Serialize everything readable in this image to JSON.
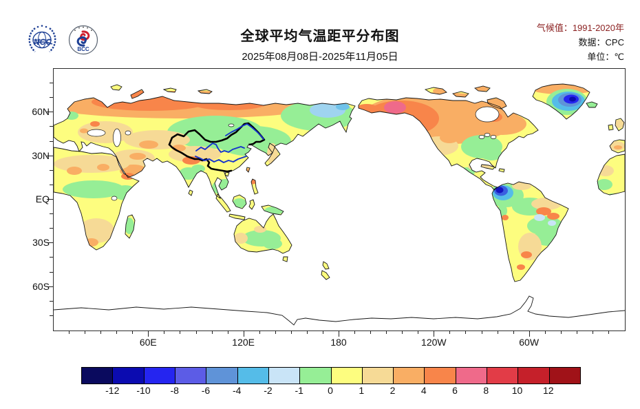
{
  "header": {
    "title": "全球平均气温距平分布图",
    "subtitle": "2025年08月08日-2025年11月05日",
    "info": [
      {
        "text": "气候值：1991-2020年"
      },
      {
        "text": "数据：CPC"
      },
      {
        "text": "单位：℃"
      }
    ],
    "logos": {
      "ncc_label": "NCC",
      "bcc_label": "BCC"
    }
  },
  "colors": {
    "climate_line": "#8a1f1f",
    "land_base": "#fdfd7f",
    "frame": "#2b2b2b",
    "china_border": "#000000",
    "river": "#1533cc"
  },
  "map": {
    "lat_ticks": [
      {
        "label": "60N",
        "deg": 60
      },
      {
        "label": "30N",
        "deg": 30
      },
      {
        "label": "EQ",
        "deg": 0
      },
      {
        "label": "30S",
        "deg": -30
      },
      {
        "label": "60S",
        "deg": -60
      }
    ],
    "lon_ticks": [
      {
        "label": "60E",
        "deg": 60
      },
      {
        "label": "120E",
        "deg": 120
      },
      {
        "label": "180",
        "deg": 180
      },
      {
        "label": "120W",
        "deg": 240
      },
      {
        "label": "60W",
        "deg": 300
      }
    ],
    "visible_anomalies": [
      {
        "region": "Northern Canada / Arctic North America",
        "anomaly_c": "+2 to +4"
      },
      {
        "region": "Arctic Siberian coast",
        "anomaly_c": "+2 to +4"
      },
      {
        "region": "Central Greenland cold core",
        "anomaly_c": "-6 to -8"
      },
      {
        "region": "NW South America (Colombia) cold core",
        "anomaly_c": "-8 to -10"
      },
      {
        "region": "Southeast China",
        "anomaly_c": "+2 to +4"
      },
      {
        "region": "Most other land areas",
        "anomaly_c": "0 to +1"
      }
    ]
  },
  "colorbar": {
    "levels": [
      -12,
      -10,
      -8,
      -6,
      -4,
      -2,
      -1,
      0,
      1,
      2,
      4,
      6,
      8,
      10,
      12
    ],
    "colors": [
      "#0a0a5e",
      "#0b0bb0",
      "#2525f0",
      "#5c5ce6",
      "#5f93d8",
      "#55bce8",
      "#c9e4f7",
      "#96ee96",
      "#fdfd7f",
      "#f6da96",
      "#f9ae64",
      "#f8854a",
      "#ef6a8a",
      "#e23c47",
      "#c5202a",
      "#a01218"
    ]
  }
}
